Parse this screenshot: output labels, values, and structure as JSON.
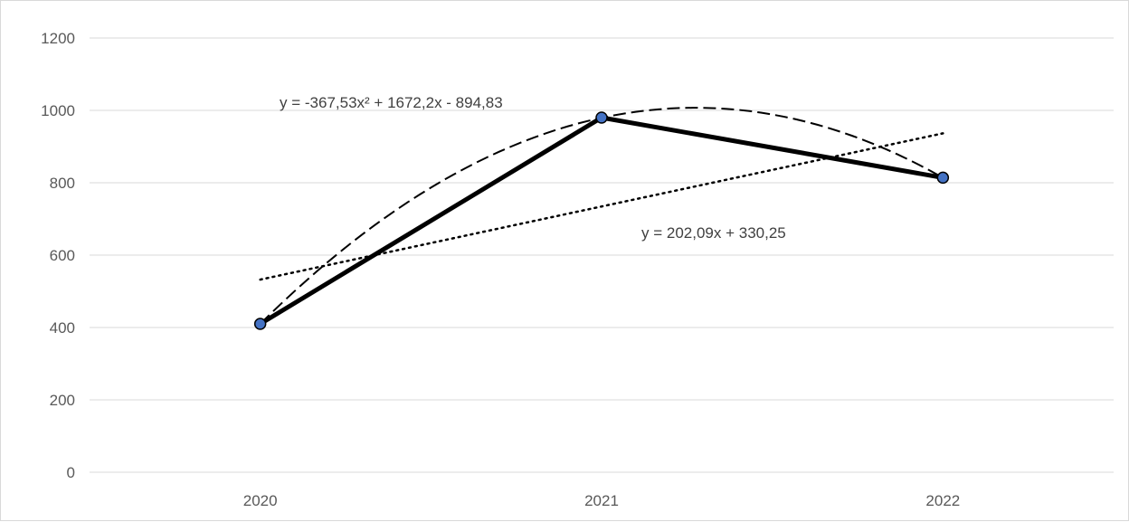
{
  "chart_data": {
    "type": "line",
    "categories": [
      "2020",
      "2021",
      "2022"
    ],
    "series": [
      {
        "values": [
          410,
          980,
          814
        ],
        "color": "#000000",
        "marker_color": "#4472c4"
      }
    ],
    "trendlines": [
      {
        "kind": "polynomial",
        "order": 2,
        "style": "dashed",
        "label": "y = -367,53x² + 1672,2x - 894,83",
        "coefficients": [
          -367.53,
          1672.2,
          -894.83
        ]
      },
      {
        "kind": "linear",
        "style": "dotted",
        "label": "y = 202,09x + 330,25",
        "coefficients": [
          202.09,
          330.25
        ]
      }
    ],
    "ylim": [
      0,
      1200
    ],
    "yticks": [
      0,
      200,
      400,
      600,
      800,
      1000,
      1200
    ],
    "grid": true,
    "title": "",
    "xlabel": "",
    "ylabel": ""
  }
}
